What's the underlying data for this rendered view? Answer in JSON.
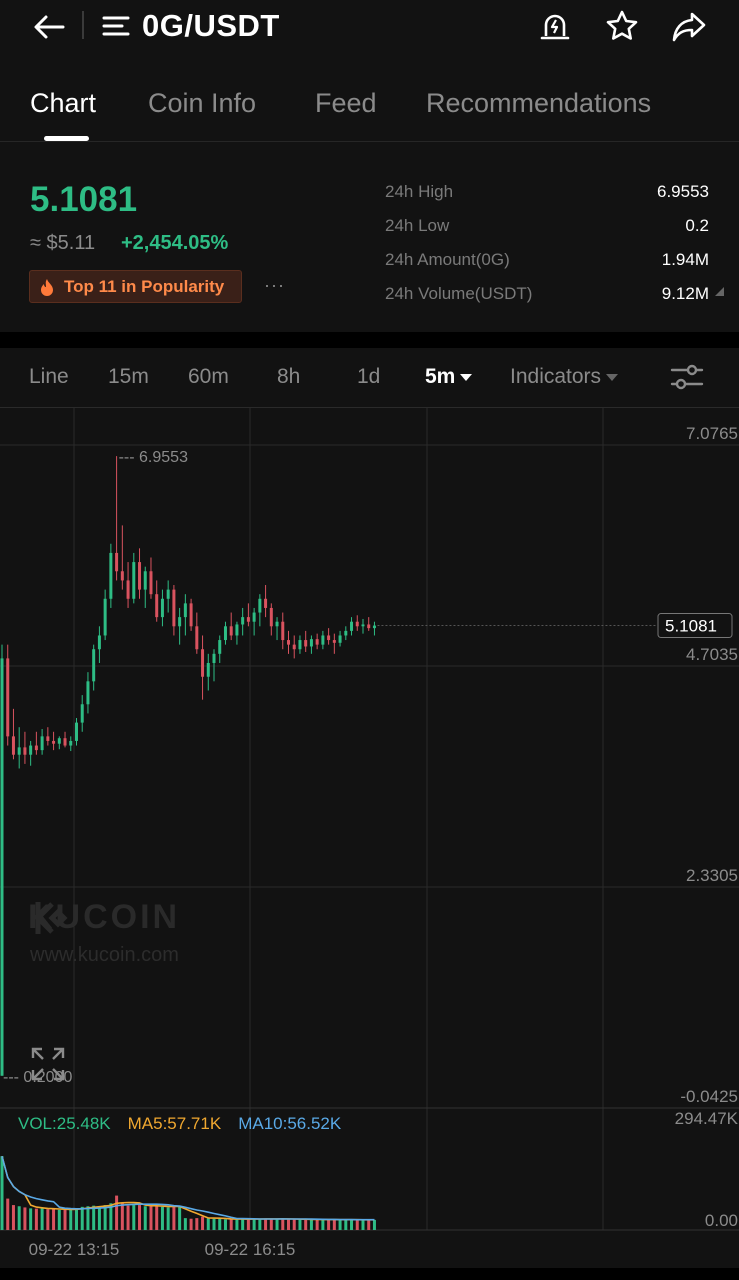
{
  "header": {
    "pair": "0G/USDT",
    "icons": [
      "back-arrow-icon",
      "menu-icon",
      "price-alert-icon",
      "star-icon",
      "share-icon"
    ]
  },
  "tabs": [
    "Chart",
    "Coin Info",
    "Feed",
    "Recommendations"
  ],
  "active_tab": "Chart",
  "ticker": {
    "last_price": "5.1081",
    "approx_usd": "≈ $5.11",
    "change_pct": "+2,454.05%",
    "popularity_badge": "Top 11 in Popularity",
    "more": "···",
    "stats": [
      {
        "label": "24h High",
        "value": "6.9553"
      },
      {
        "label": "24h Low",
        "value": "0.2"
      },
      {
        "label": "24h Amount(0G)",
        "value": "1.94M"
      },
      {
        "label": "24h Volume(USDT)",
        "value": "9.12M"
      }
    ]
  },
  "timeframes": {
    "items": [
      "Line",
      "15m",
      "60m",
      "8h",
      "1d"
    ],
    "selected": "5m",
    "indicators": "Indicators"
  },
  "chart_data": {
    "type": "candlestick",
    "y_axis_labels": [
      "7.0765",
      "4.7035",
      "2.3305",
      "-0.0425"
    ],
    "ylim": [
      -0.0425,
      7.0765
    ],
    "current_price_label": "5.1081",
    "high_marker": "6.9553",
    "low_marker": "0.2000",
    "x_labels": [
      "09-22 13:15",
      "09-22 16:15"
    ],
    "volume_axis_labels": [
      "294.47K",
      "0.00"
    ],
    "volume_legend": {
      "vol": "VOL:25.48K",
      "ma5": "MA5:57.71K",
      "ma10": "MA10:56.52K"
    },
    "candles_ohlc": [
      [
        0.2,
        4.9,
        0.2,
        4.75
      ],
      [
        4.75,
        4.9,
        3.8,
        3.9
      ],
      [
        3.9,
        4.2,
        3.65,
        3.7
      ],
      [
        3.7,
        4.0,
        3.55,
        3.78
      ],
      [
        3.78,
        3.95,
        3.6,
        3.7
      ],
      [
        3.7,
        3.85,
        3.58,
        3.8
      ],
      [
        3.8,
        3.95,
        3.7,
        3.75
      ],
      [
        3.75,
        3.98,
        3.7,
        3.9
      ],
      [
        3.9,
        4.0,
        3.8,
        3.85
      ],
      [
        3.85,
        3.95,
        3.75,
        3.82
      ],
      [
        3.82,
        3.9,
        3.76,
        3.88
      ],
      [
        3.88,
        3.95,
        3.78,
        3.8
      ],
      [
        3.8,
        3.9,
        3.74,
        3.85
      ],
      [
        3.85,
        4.1,
        3.8,
        4.05
      ],
      [
        4.05,
        4.35,
        3.95,
        4.25
      ],
      [
        4.25,
        4.6,
        4.15,
        4.5
      ],
      [
        4.5,
        4.9,
        4.4,
        4.85
      ],
      [
        4.85,
        5.1,
        4.7,
        5.0
      ],
      [
        5.0,
        5.5,
        4.95,
        5.4
      ],
      [
        5.4,
        6.0,
        5.3,
        5.9
      ],
      [
        5.9,
        6.9553,
        5.6,
        5.7
      ],
      [
        5.7,
        6.2,
        5.5,
        5.6
      ],
      [
        5.6,
        5.8,
        5.3,
        5.4
      ],
      [
        5.4,
        5.9,
        5.35,
        5.8
      ],
      [
        5.8,
        5.95,
        5.4,
        5.5
      ],
      [
        5.5,
        5.75,
        5.3,
        5.7
      ],
      [
        5.7,
        5.85,
        5.4,
        5.45
      ],
      [
        5.45,
        5.6,
        5.15,
        5.2
      ],
      [
        5.2,
        5.5,
        5.1,
        5.4
      ],
      [
        5.4,
        5.6,
        5.25,
        5.5
      ],
      [
        5.5,
        5.55,
        5.0,
        5.1
      ],
      [
        5.1,
        5.3,
        4.9,
        5.2
      ],
      [
        5.2,
        5.45,
        5.0,
        5.35
      ],
      [
        5.35,
        5.4,
        5.05,
        5.1
      ],
      [
        5.1,
        5.25,
        4.8,
        4.85
      ],
      [
        4.85,
        5.0,
        4.3,
        4.55
      ],
      [
        4.55,
        4.8,
        4.4,
        4.7
      ],
      [
        4.7,
        4.85,
        4.5,
        4.8
      ],
      [
        4.8,
        5.0,
        4.7,
        4.95
      ],
      [
        4.95,
        5.15,
        4.9,
        5.1
      ],
      [
        5.1,
        5.25,
        4.95,
        5.0
      ],
      [
        5.0,
        5.15,
        4.9,
        5.12
      ],
      [
        5.12,
        5.3,
        5.0,
        5.2
      ],
      [
        5.2,
        5.35,
        5.1,
        5.15
      ],
      [
        5.15,
        5.3,
        5.0,
        5.25
      ],
      [
        5.25,
        5.45,
        5.1,
        5.4
      ],
      [
        5.4,
        5.55,
        5.2,
        5.3
      ],
      [
        5.3,
        5.35,
        5.0,
        5.1
      ],
      [
        5.1,
        5.2,
        4.95,
        5.15
      ],
      [
        5.15,
        5.25,
        4.85,
        4.95
      ],
      [
        4.95,
        5.05,
        4.8,
        4.9
      ],
      [
        4.9,
        5.0,
        4.75,
        4.85
      ],
      [
        4.85,
        5.0,
        4.8,
        4.95
      ],
      [
        4.95,
        5.05,
        4.82,
        4.88
      ],
      [
        4.88,
        5.0,
        4.8,
        4.96
      ],
      [
        4.96,
        5.02,
        4.85,
        4.9
      ],
      [
        4.9,
        5.05,
        4.85,
        5.0
      ],
      [
        5.0,
        5.08,
        4.9,
        4.95
      ],
      [
        4.95,
        5.02,
        4.8,
        4.92
      ],
      [
        4.92,
        5.05,
        4.88,
        5.0
      ],
      [
        5.0,
        5.1,
        4.95,
        5.05
      ],
      [
        5.05,
        5.2,
        5.0,
        5.15
      ],
      [
        5.15,
        5.22,
        5.05,
        5.1
      ],
      [
        5.1,
        5.18,
        5.02,
        5.12
      ],
      [
        5.12,
        5.2,
        5.05,
        5.08
      ],
      [
        5.08,
        5.15,
        5.0,
        5.1081
      ]
    ]
  },
  "colors": {
    "up": "#2ebd85",
    "down": "#d9535f",
    "ma5": "#f0a830",
    "ma10": "#5aa9e6",
    "bg": "#121212",
    "grid": "#2a2a2a",
    "muted": "#8b8b8b",
    "popularity": "#ff8a4a"
  },
  "watermark": {
    "name": "KUCOIN",
    "url": "www.kucoin.com"
  }
}
